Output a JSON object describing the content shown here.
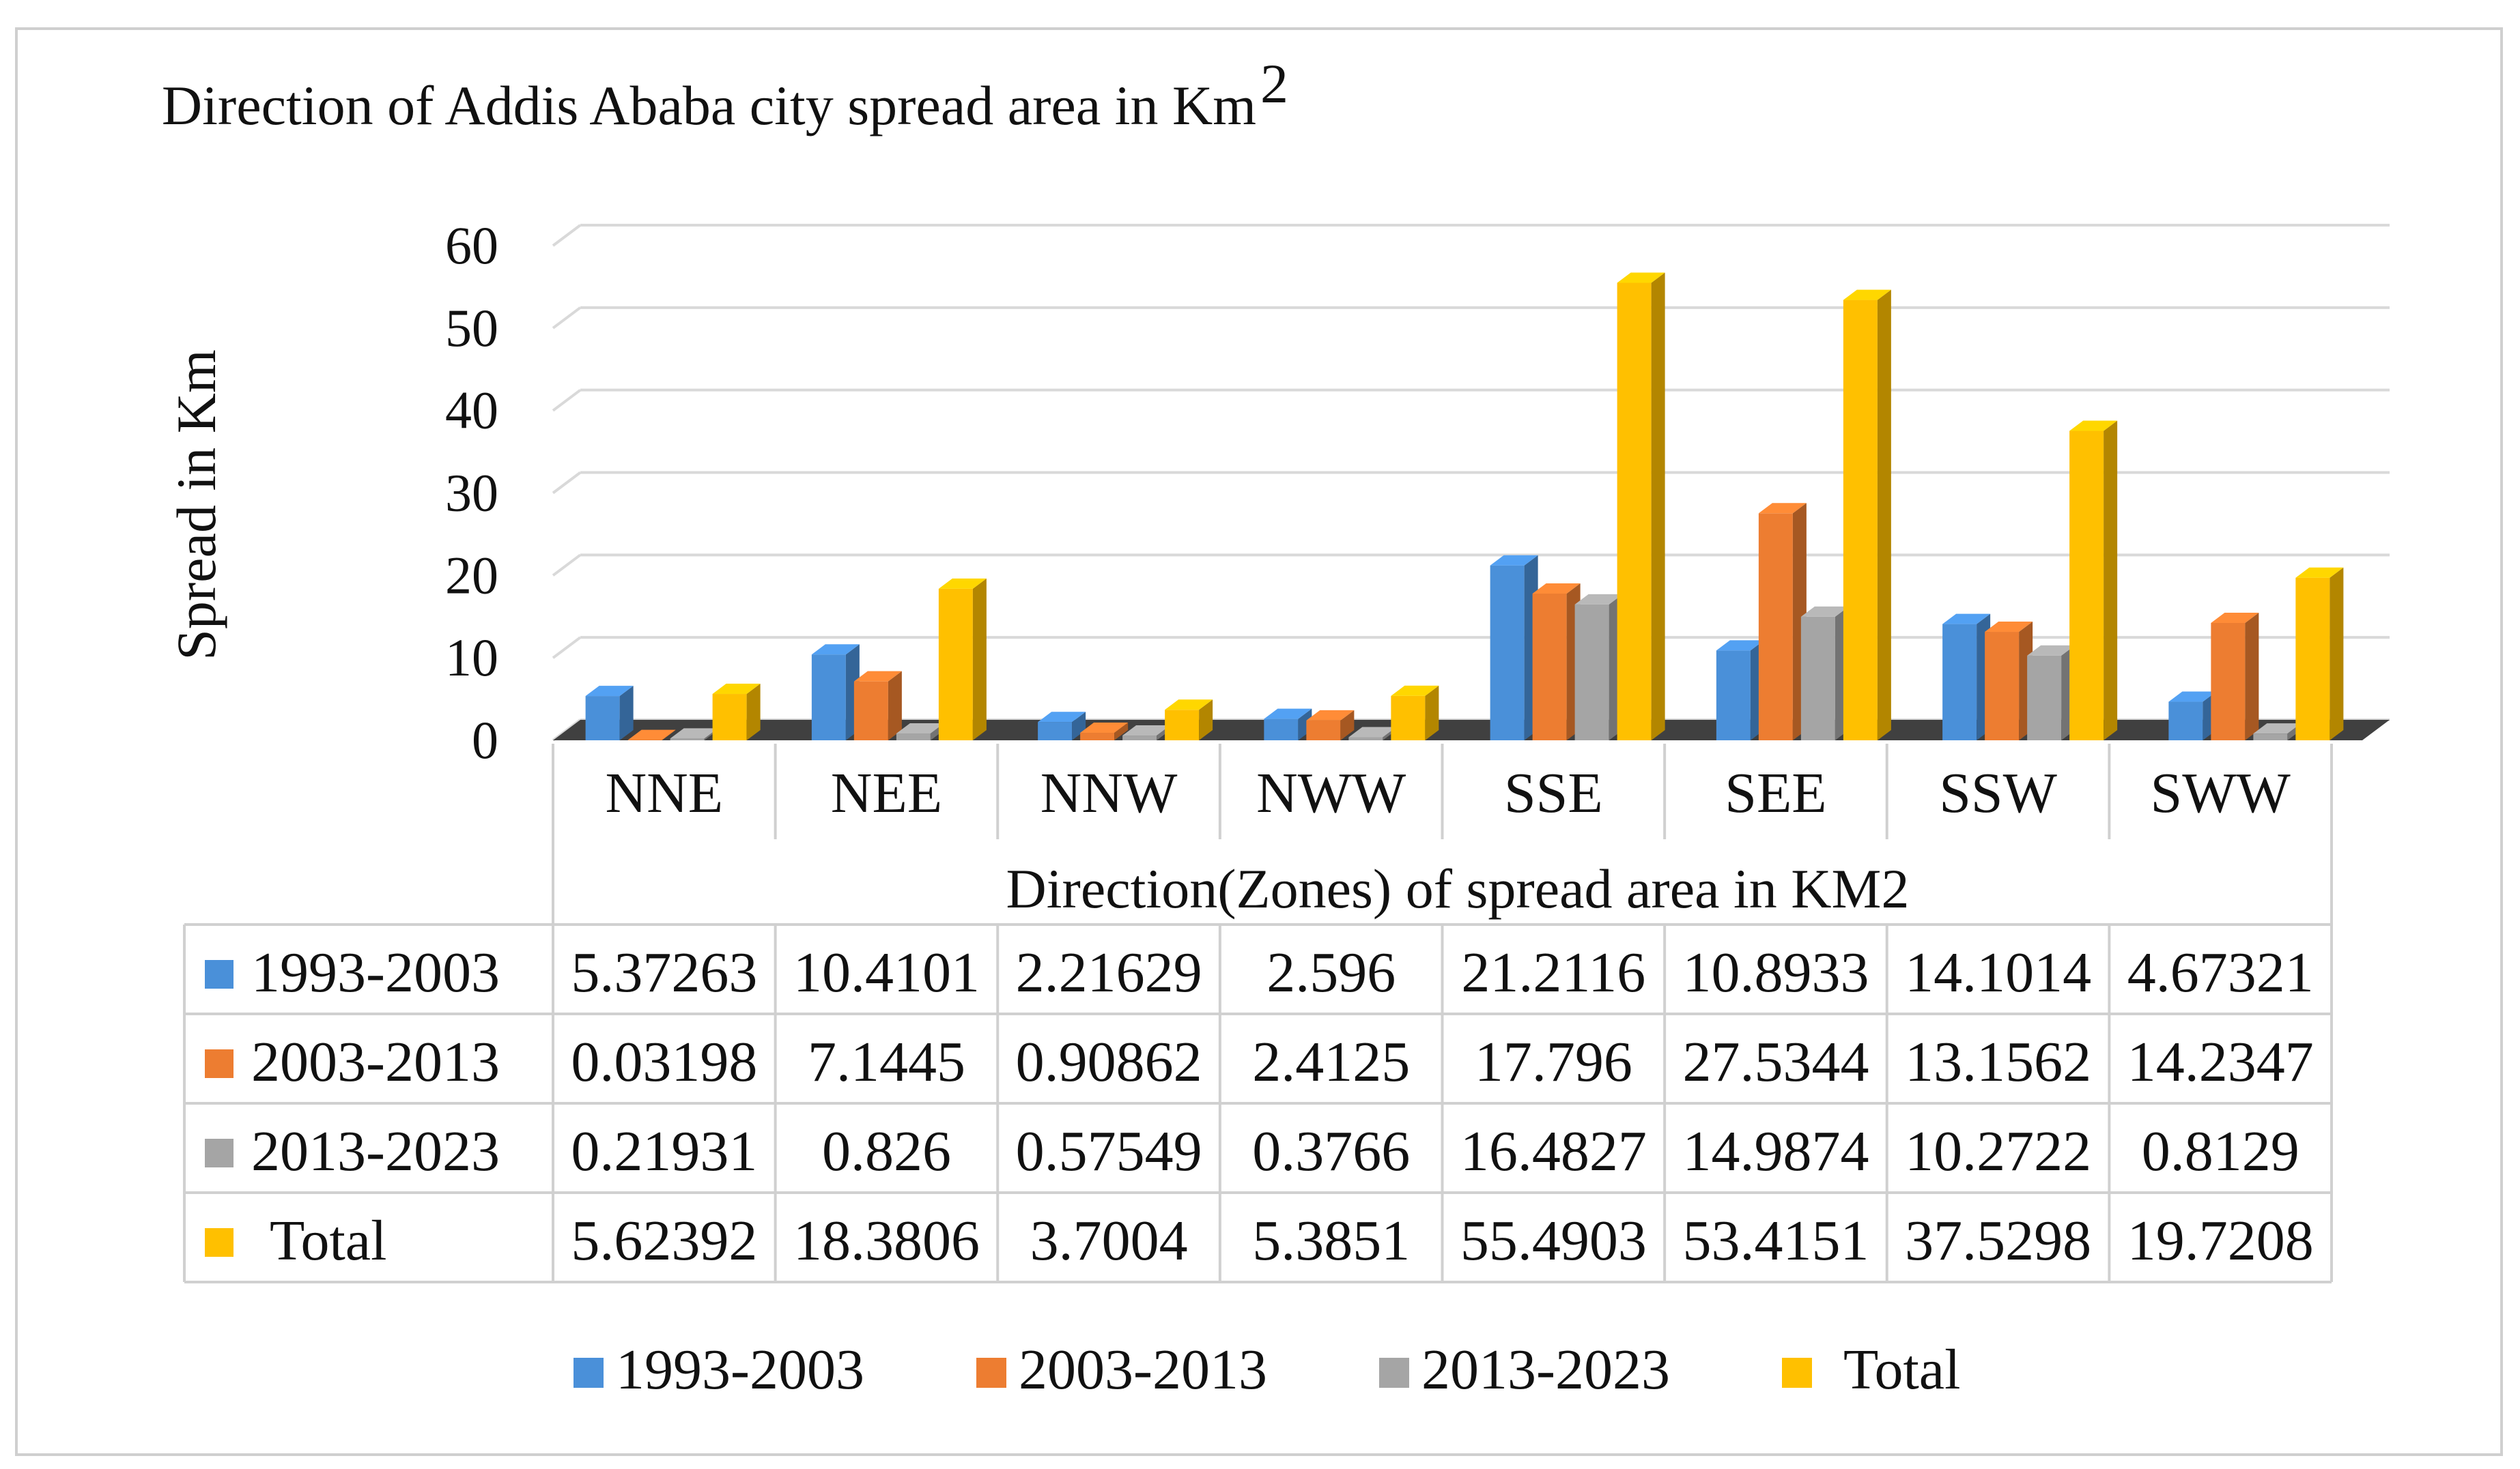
{
  "chart_data": {
    "type": "bar",
    "style": "3d-clustered-column-with-data-table",
    "title": "Direction of Addis Ababa city spread area in Km",
    "title_superscript": "2",
    "ylabel": "Spread in Km",
    "xlabel": "Direction(Zones) of spread area in KM2",
    "ylim": [
      0,
      60
    ],
    "yticks": [
      0,
      10,
      20,
      30,
      40,
      50,
      60
    ],
    "grid": true,
    "legend_position": "bottom",
    "categories": [
      "NNE",
      "NEE",
      "NNW",
      "NWW",
      "SSE",
      "SEE",
      "SSW",
      "SWW"
    ],
    "series": [
      {
        "name": "1993-2003",
        "color": "#4a90d9",
        "values": [
          5.37263,
          10.4101,
          2.21629,
          2.596,
          21.2116,
          10.8933,
          14.1014,
          4.67321
        ],
        "labels": [
          "5.37263",
          "10.4101",
          "2.21629",
          "2.596",
          "21.2116",
          "10.8933",
          "14.1014",
          "4.67321"
        ]
      },
      {
        "name": "2003-2013",
        "color": "#ed7d31",
        "values": [
          0.03198,
          7.1445,
          0.90862,
          2.4125,
          17.796,
          27.5344,
          13.1562,
          14.2347
        ],
        "labels": [
          "0.03198",
          "7.1445",
          "0.90862",
          "2.4125",
          "17.796",
          "27.5344",
          "13.1562",
          "14.2347"
        ]
      },
      {
        "name": "2013-2023",
        "color": "#a5a5a5",
        "values": [
          0.21931,
          0.826,
          0.57549,
          0.3766,
          16.4827,
          14.9874,
          10.2722,
          0.8129
        ],
        "labels": [
          "0.21931",
          "0.826",
          "0.57549",
          "0.3766",
          "16.4827",
          "14.9874",
          "10.2722",
          "0.8129"
        ]
      },
      {
        "name": "Total",
        "color": "#ffc000",
        "values": [
          5.62392,
          18.3806,
          3.7004,
          5.3851,
          55.4903,
          53.4151,
          37.5298,
          19.7208
        ],
        "labels": [
          "5.62392",
          "18.3806",
          "3.7004",
          "5.3851",
          "55.4903",
          "53.4151",
          "37.5298",
          "19.7208"
        ]
      }
    ]
  }
}
